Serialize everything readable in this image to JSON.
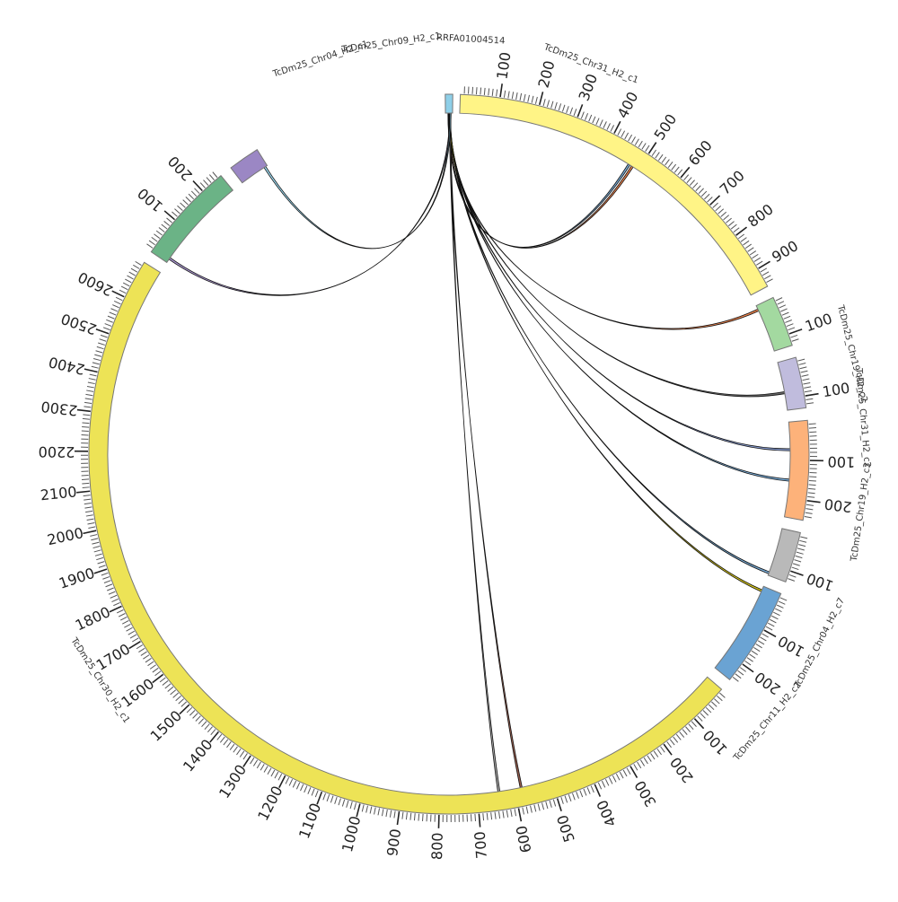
{
  "chart_data": {
    "type": "circos",
    "title": "",
    "ideogram": [
      {
        "name": "RRFA01004514",
        "length": 20,
        "color": "#8ecfe8"
      },
      {
        "name": "TcDm25_Chr31_H2_c1",
        "length": 950,
        "color": "#fff486"
      },
      {
        "name": "TcDm25_Chr19_H2_c2",
        "length": 130,
        "color": "#a3d9a0"
      },
      {
        "name": "TcDm25_Chr31_H2_c2",
        "length": 130,
        "color": "#c0bcdd"
      },
      {
        "name": "TcDm25_Chr19_H2_c3",
        "length": 250,
        "color": "#fdb27a"
      },
      {
        "name": "TcDm25_Chr04_H2_c7",
        "length": 130,
        "color": "#b9b9b9"
      },
      {
        "name": "TcDm25_Chr11_H2_c2",
        "length": 250,
        "color": "#6aa3d3"
      },
      {
        "name": "TcDm25_Chr30_H2_c1",
        "length": 2700,
        "color": "#ede356"
      },
      {
        "name": "TcDm25_Chr04_H2_c1",
        "length": 260,
        "color": "#6bb386"
      },
      {
        "name": "TcDm25_Chr09_H2_c1",
        "length": 80,
        "color": "#9b87c4"
      }
    ],
    "ticks": [
      {
        "chrom": "TcDm25_Chr31_H2_c1",
        "values": [
          "100",
          "200",
          "300",
          "400",
          "500",
          "600",
          "700",
          "800",
          "900"
        ]
      },
      {
        "chrom": "TcDm25_Chr19_H2_c2",
        "values": [
          "100"
        ]
      },
      {
        "chrom": "TcDm25_Chr31_H2_c2",
        "values": [
          "100"
        ]
      },
      {
        "chrom": "TcDm25_Chr19_H2_c3",
        "values": [
          "100",
          "200"
        ]
      },
      {
        "chrom": "TcDm25_Chr04_H2_c7",
        "values": [
          "100"
        ]
      },
      {
        "chrom": "TcDm25_Chr11_H2_c2",
        "values": [
          "100",
          "200"
        ]
      },
      {
        "chrom": "TcDm25_Chr30_H2_c1",
        "values": [
          "100",
          "200",
          "300",
          "400",
          "500",
          "600",
          "700",
          "800",
          "900",
          "1000",
          "1100",
          "1200",
          "1300",
          "1400",
          "1500",
          "1600",
          "1700",
          "1800",
          "1900",
          "2000",
          "2100",
          "2200",
          "2300",
          "2400",
          "2500",
          "2600"
        ]
      },
      {
        "chrom": "TcDm25_Chr04_H2_c1",
        "values": [
          "100",
          "200"
        ]
      }
    ],
    "links": [
      {
        "source": "RRFA01004514",
        "target": "TcDm25_Chr31_H2_c1",
        "target_pos": 470,
        "color": "#6aa3d3"
      },
      {
        "source": "RRFA01004514",
        "target": "TcDm25_Chr31_H2_c1",
        "target_pos": 480,
        "color": "#e8743b"
      },
      {
        "source": "RRFA01004514",
        "target": "TcDm25_Chr19_H2_c2",
        "target_pos": 10,
        "color": "#e8743b"
      },
      {
        "source": "RRFA01004514",
        "target": "TcDm25_Chr31_H2_c2",
        "target_pos": 80,
        "color": "#555555"
      },
      {
        "source": "RRFA01004514",
        "target": "TcDm25_Chr19_H2_c3",
        "target_pos": 70,
        "color": "#7a90c9"
      },
      {
        "source": "RRFA01004514",
        "target": "TcDm25_Chr19_H2_c3",
        "target_pos": 150,
        "color": "#6aa3d3"
      },
      {
        "source": "RRFA01004514",
        "target": "TcDm25_Chr04_H2_c7",
        "target_pos": 120,
        "color": "#6aa3d3"
      },
      {
        "source": "RRFA01004514",
        "target": "TcDm25_Chr11_H2_c2",
        "target_pos": 10,
        "color": "#c9b800"
      },
      {
        "source": "RRFA01004514",
        "target": "TcDm25_Chr30_H2_c1",
        "target_pos": 580,
        "color": "#8b4a3a"
      },
      {
        "source": "RRFA01004514",
        "target": "TcDm25_Chr30_H2_c1",
        "target_pos": 640,
        "color": "#999999"
      },
      {
        "source": "RRFA01004514",
        "target": "TcDm25_Chr04_H2_c1",
        "target_pos": 10,
        "color": "#9b87c4"
      },
      {
        "source": "RRFA01004514",
        "target": "TcDm25_Chr09_H2_c1",
        "target_pos": 70,
        "color": "#8ecfe8"
      }
    ]
  }
}
